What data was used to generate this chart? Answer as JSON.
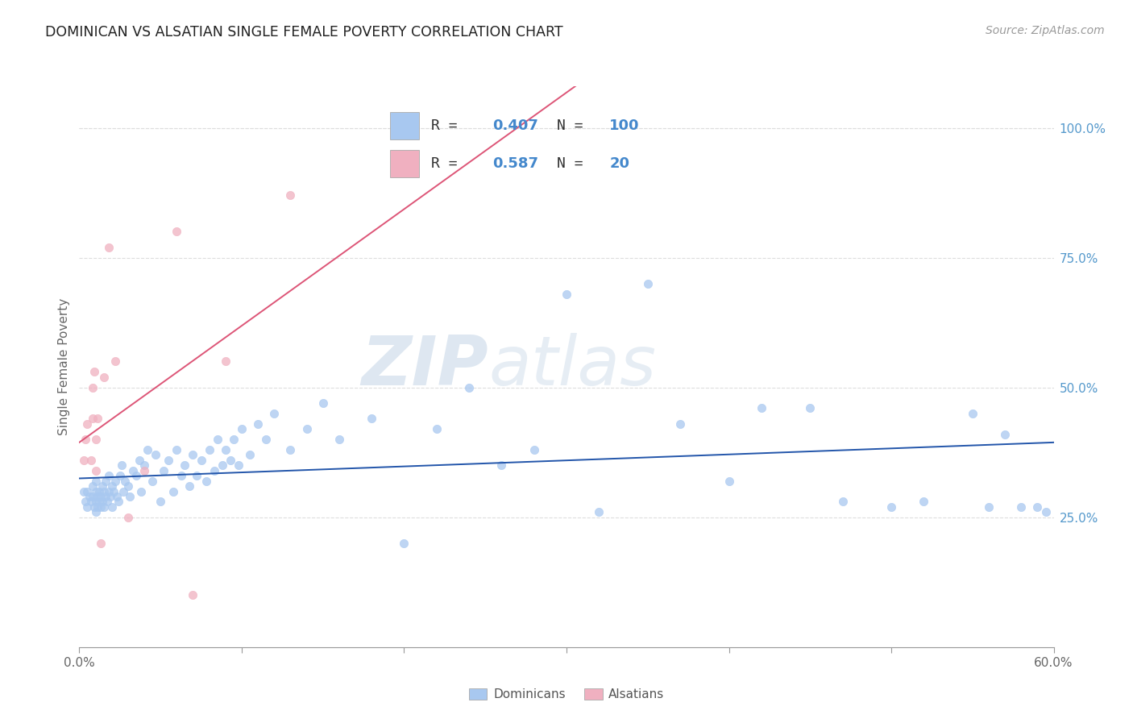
{
  "title": "DOMINICAN VS ALSATIAN SINGLE FEMALE POVERTY CORRELATION CHART",
  "source": "Source: ZipAtlas.com",
  "ylabel": "Single Female Poverty",
  "x_min": 0.0,
  "x_max": 0.6,
  "y_min": 0.0,
  "y_max": 1.08,
  "y_ticks": [
    0.25,
    0.5,
    0.75,
    1.0
  ],
  "y_tick_labels": [
    "25.0%",
    "50.0%",
    "75.0%",
    "100.0%"
  ],
  "x_ticks": [
    0.0,
    0.1,
    0.2,
    0.3,
    0.4,
    0.5,
    0.6
  ],
  "x_tick_labels": [
    "0.0%",
    "",
    "",
    "",
    "",
    "",
    "60.0%"
  ],
  "legend_labels": [
    "Dominicans",
    "Alsatians"
  ],
  "dominican_color": "#a8c8f0",
  "alsatian_color": "#f0b0c0",
  "dominican_line_color": "#2255aa",
  "alsatian_line_color": "#dd5577",
  "R_dominican": 0.407,
  "N_dominican": 100,
  "R_alsatian": 0.587,
  "N_alsatian": 20,
  "watermark_zip": "ZIP",
  "watermark_atlas": "atlas",
  "background_color": "#ffffff",
  "grid_color": "#dddddd",
  "dominican_x": [
    0.003,
    0.004,
    0.005,
    0.005,
    0.006,
    0.007,
    0.008,
    0.008,
    0.009,
    0.01,
    0.01,
    0.01,
    0.01,
    0.011,
    0.011,
    0.012,
    0.012,
    0.013,
    0.013,
    0.014,
    0.014,
    0.015,
    0.015,
    0.016,
    0.016,
    0.017,
    0.018,
    0.018,
    0.019,
    0.02,
    0.02,
    0.021,
    0.022,
    0.023,
    0.024,
    0.025,
    0.026,
    0.027,
    0.028,
    0.03,
    0.031,
    0.033,
    0.035,
    0.037,
    0.038,
    0.04,
    0.042,
    0.045,
    0.047,
    0.05,
    0.052,
    0.055,
    0.058,
    0.06,
    0.063,
    0.065,
    0.068,
    0.07,
    0.072,
    0.075,
    0.078,
    0.08,
    0.083,
    0.085,
    0.088,
    0.09,
    0.093,
    0.095,
    0.098,
    0.1,
    0.105,
    0.11,
    0.115,
    0.12,
    0.13,
    0.14,
    0.15,
    0.16,
    0.18,
    0.2,
    0.22,
    0.24,
    0.26,
    0.28,
    0.3,
    0.32,
    0.35,
    0.37,
    0.4,
    0.42,
    0.45,
    0.47,
    0.5,
    0.52,
    0.55,
    0.56,
    0.57,
    0.58,
    0.59,
    0.595
  ],
  "dominican_y": [
    0.3,
    0.28,
    0.27,
    0.3,
    0.29,
    0.28,
    0.29,
    0.31,
    0.27,
    0.26,
    0.28,
    0.3,
    0.32,
    0.27,
    0.29,
    0.28,
    0.3,
    0.27,
    0.29,
    0.28,
    0.31,
    0.27,
    0.3,
    0.29,
    0.32,
    0.28,
    0.3,
    0.33,
    0.29,
    0.27,
    0.31,
    0.3,
    0.32,
    0.29,
    0.28,
    0.33,
    0.35,
    0.3,
    0.32,
    0.31,
    0.29,
    0.34,
    0.33,
    0.36,
    0.3,
    0.35,
    0.38,
    0.32,
    0.37,
    0.28,
    0.34,
    0.36,
    0.3,
    0.38,
    0.33,
    0.35,
    0.31,
    0.37,
    0.33,
    0.36,
    0.32,
    0.38,
    0.34,
    0.4,
    0.35,
    0.38,
    0.36,
    0.4,
    0.35,
    0.42,
    0.37,
    0.43,
    0.4,
    0.45,
    0.38,
    0.42,
    0.47,
    0.4,
    0.44,
    0.2,
    0.42,
    0.5,
    0.35,
    0.38,
    0.68,
    0.26,
    0.7,
    0.43,
    0.32,
    0.46,
    0.46,
    0.28,
    0.27,
    0.28,
    0.45,
    0.27,
    0.41,
    0.27,
    0.27,
    0.26
  ],
  "alsatian_x": [
    0.003,
    0.004,
    0.005,
    0.007,
    0.008,
    0.008,
    0.009,
    0.01,
    0.01,
    0.011,
    0.013,
    0.015,
    0.018,
    0.022,
    0.03,
    0.04,
    0.06,
    0.07,
    0.09,
    0.13
  ],
  "alsatian_y": [
    0.36,
    0.4,
    0.43,
    0.36,
    0.44,
    0.5,
    0.53,
    0.34,
    0.4,
    0.44,
    0.2,
    0.52,
    0.77,
    0.55,
    0.25,
    0.34,
    0.8,
    0.1,
    0.55,
    0.87
  ]
}
